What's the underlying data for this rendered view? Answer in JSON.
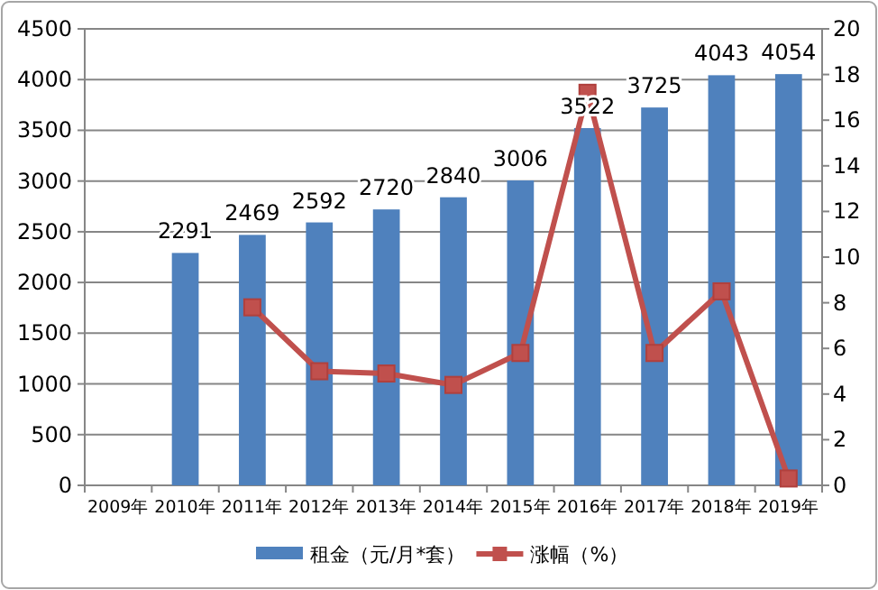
{
  "chart_data": {
    "type": "bar",
    "categories": [
      "2009年",
      "2010年",
      "2011年",
      "2012年",
      "2013年",
      "2014年",
      "2015年",
      "2016年",
      "2017年",
      "2018年",
      "2019年"
    ],
    "series": [
      {
        "name": "租金（元/月*套）",
        "color": "#4f81bd",
        "values": [
          null,
          2291,
          2469,
          2592,
          2720,
          2840,
          3006,
          3522,
          3725,
          4043,
          4054
        ],
        "value_labels": [
          null,
          "2291",
          "2469",
          "2592",
          "2720",
          "2840",
          "3006",
          "3522",
          "3725",
          "4043",
          "4054"
        ]
      },
      {
        "name": "涨幅（%）",
        "type": "line",
        "axis": "y2",
        "color": "#c0504d",
        "values": [
          null,
          null,
          7.8,
          5.0,
          4.9,
          4.4,
          5.8,
          17.2,
          5.8,
          8.5,
          0.3
        ]
      }
    ],
    "ylim": [
      0,
      4500
    ],
    "yticks": [
      0,
      500,
      1000,
      1500,
      2000,
      2500,
      3000,
      3500,
      4000,
      4500
    ],
    "y2lim": [
      0,
      20
    ],
    "y2ticks": [
      0,
      2,
      4,
      6,
      8,
      10,
      12,
      14,
      16,
      18,
      20
    ],
    "grid": "y",
    "legend": "bottom",
    "marker": "square",
    "line_style": "solid"
  }
}
